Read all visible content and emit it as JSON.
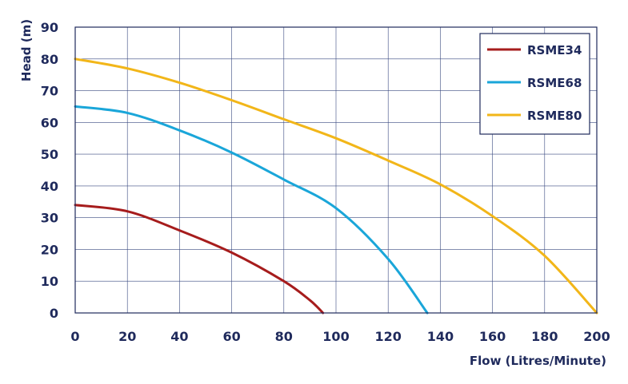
{
  "chart_data": {
    "type": "line",
    "xlabel": "Flow (Litres/Minute)",
    "ylabel": "Head (m)",
    "xlim": [
      0,
      200
    ],
    "ylim": [
      0,
      90
    ],
    "xticks": [
      0,
      20,
      40,
      60,
      80,
      100,
      120,
      140,
      160,
      180,
      200
    ],
    "yticks": [
      0,
      10,
      20,
      30,
      40,
      50,
      60,
      70,
      80,
      90
    ],
    "grid": true,
    "legend_position": "top-right",
    "series": [
      {
        "name": "RSME34",
        "color": "#a61c1c",
        "x": [
          0,
          20,
          40,
          60,
          80,
          90,
          95
        ],
        "y": [
          34,
          32,
          26,
          19,
          10,
          4,
          0
        ]
      },
      {
        "name": "RSME68",
        "color": "#1aa6d9",
        "x": [
          0,
          20,
          40,
          60,
          80,
          100,
          120,
          135
        ],
        "y": [
          65,
          63,
          57.5,
          50.5,
          42,
          33,
          17,
          0
        ]
      },
      {
        "name": "RSME80",
        "color": "#f2b619",
        "x": [
          0,
          20,
          40,
          60,
          80,
          100,
          120,
          140,
          160,
          180,
          200
        ],
        "y": [
          80,
          77,
          72.5,
          67,
          61,
          55,
          48,
          40.5,
          30.5,
          18,
          0
        ]
      }
    ]
  }
}
